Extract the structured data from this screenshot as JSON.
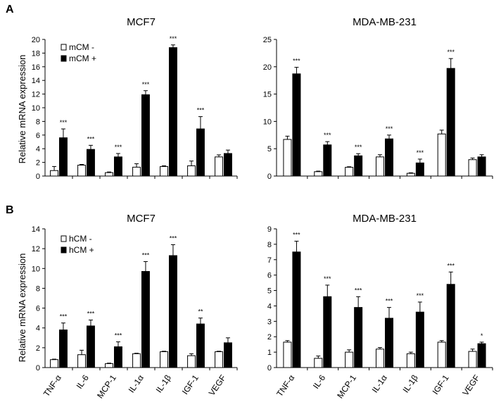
{
  "panels": [
    {
      "letter": "A",
      "ylabel": "Relative  mRNA expression",
      "legend": [
        "mCM -",
        "mCM +"
      ]
    },
    {
      "letter": "B",
      "ylabel": "Relative  mRNA expression",
      "legend": [
        "hCM -",
        "hCM +"
      ]
    }
  ],
  "chart_data": [
    {
      "id": "A-MCF7",
      "type": "bar",
      "title": "MCF7",
      "categories": [
        "TNF-α",
        "IL-6",
        "MCP-1",
        "IL-1α",
        "IL-1β",
        "IGF-1",
        "VEGF"
      ],
      "ylim": [
        0,
        20
      ],
      "yticks": [
        0,
        2,
        4,
        6,
        8,
        10,
        12,
        14,
        16,
        18,
        20
      ],
      "series": [
        {
          "name": "mCM -",
          "values": [
            0.8,
            1.6,
            0.5,
            1.3,
            1.4,
            1.5,
            2.8
          ],
          "errors": [
            0.6,
            0.1,
            0.1,
            0.5,
            0.1,
            0.7,
            0.3
          ]
        },
        {
          "name": "mCM +",
          "values": [
            5.6,
            3.9,
            2.8,
            11.9,
            18.8,
            6.9,
            3.3
          ],
          "errors": [
            1.3,
            0.6,
            0.5,
            0.6,
            0.4,
            1.8,
            0.5
          ]
        }
      ],
      "significance": [
        "***",
        "***",
        "***",
        "***",
        "***",
        "***",
        ""
      ]
    },
    {
      "id": "A-MDA",
      "type": "bar",
      "title": "MDA-MB-231",
      "categories": [
        "TNF-α",
        "IL-6",
        "MCP-1",
        "IL-1α",
        "IL-1β",
        "IGF-1",
        "VEGF"
      ],
      "ylim": [
        0,
        25
      ],
      "yticks": [
        0,
        5,
        10,
        15,
        20,
        25
      ],
      "series": [
        {
          "name": "mCM -",
          "values": [
            6.7,
            0.8,
            1.6,
            3.5,
            0.5,
            7.7,
            3.0
          ],
          "errors": [
            0.6,
            0.1,
            0.1,
            0.4,
            0.1,
            0.7,
            0.3
          ]
        },
        {
          "name": "mCM +",
          "values": [
            18.7,
            5.7,
            3.7,
            6.8,
            2.4,
            19.7,
            3.5
          ],
          "errors": [
            1.2,
            0.6,
            0.4,
            0.7,
            0.7,
            1.8,
            0.4
          ]
        }
      ],
      "significance": [
        "***",
        "***",
        "***",
        "***",
        "***",
        "***",
        ""
      ]
    },
    {
      "id": "B-MCF7",
      "type": "bar",
      "title": "MCF7",
      "categories": [
        "TNF-α",
        "IL-6",
        "MCP-1",
        "IL-1α",
        "IL-1β",
        "IGF-1",
        "VEGF"
      ],
      "ylim": [
        0,
        14
      ],
      "yticks": [
        0,
        2,
        4,
        6,
        8,
        10,
        12,
        14
      ],
      "series": [
        {
          "name": "hCM -",
          "values": [
            0.8,
            1.3,
            0.4,
            1.4,
            1.6,
            1.2,
            1.6
          ],
          "errors": [
            0.05,
            0.45,
            0.05,
            0.05,
            0.05,
            0.2,
            0.05
          ]
        },
        {
          "name": "hCM +",
          "values": [
            3.8,
            4.2,
            2.1,
            9.7,
            11.3,
            4.4,
            2.5
          ],
          "errors": [
            0.7,
            0.6,
            0.5,
            1.0,
            1.1,
            0.6,
            0.5
          ]
        }
      ],
      "significance": [
        "***",
        "***",
        "***",
        "***",
        "***",
        "**",
        ""
      ]
    },
    {
      "id": "B-MDA",
      "type": "bar",
      "title": "MDA-MB-231",
      "categories": [
        "TNF-α",
        "IL-6",
        "MCP-1",
        "IL-1α",
        "IL-1β",
        "IGF-1",
        "VEGF"
      ],
      "ylim": [
        0,
        9
      ],
      "yticks": [
        0,
        1,
        2,
        3,
        4,
        5,
        6,
        7,
        8,
        9
      ],
      "series": [
        {
          "name": "hCM -",
          "values": [
            1.65,
            0.6,
            1.0,
            1.2,
            0.9,
            1.65,
            1.05
          ],
          "errors": [
            0.1,
            0.15,
            0.15,
            0.1,
            0.1,
            0.1,
            0.15
          ]
        },
        {
          "name": "hCM +",
          "values": [
            7.5,
            4.6,
            3.9,
            3.2,
            3.6,
            5.4,
            1.55
          ],
          "errors": [
            0.7,
            0.75,
            0.7,
            0.7,
            0.65,
            0.8,
            0.1
          ]
        }
      ],
      "significance": [
        "***",
        "***",
        "***",
        "***",
        "***",
        "***",
        "*"
      ]
    }
  ]
}
